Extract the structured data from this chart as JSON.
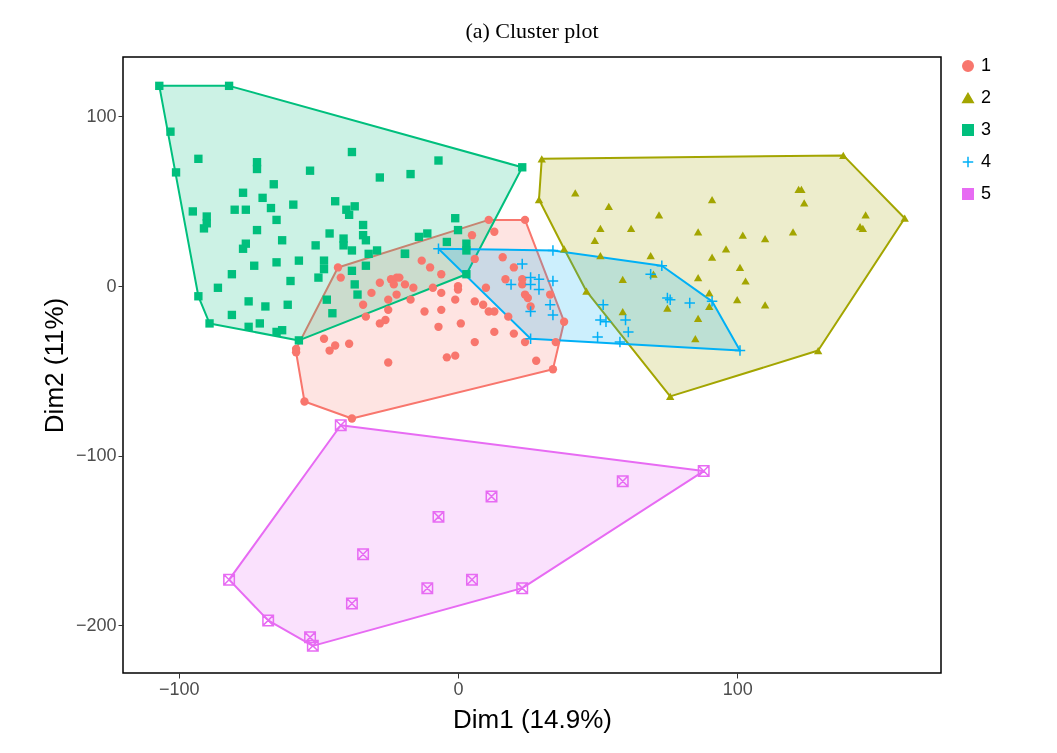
{
  "chart_data": {
    "type": "scatter",
    "title": "(a) Cluster plot",
    "xlabel": "Dim1 (14.9%)",
    "ylabel": "Dim2 (11%)",
    "xlim": [
      -120,
      173
    ],
    "ylim": [
      -228,
      135
    ],
    "xticks": [
      -100,
      0,
      100
    ],
    "yticks": [
      -200,
      -100,
      0,
      100
    ],
    "grid": false,
    "legend": "right",
    "series": [
      {
        "name": "1",
        "color": "#f8766d",
        "marker": "circle",
        "x": [
          -43,
          -42,
          -28,
          -24,
          -22,
          -23,
          -31,
          -25,
          -22,
          -34,
          -33,
          -25,
          -28,
          -26,
          -48,
          -44,
          -46,
          -39,
          -58,
          -58,
          -55,
          -38,
          -25,
          11,
          24,
          13,
          5,
          16,
          20,
          17,
          23,
          23,
          24,
          25,
          26,
          10,
          33,
          38,
          18,
          13,
          20,
          24,
          6,
          1,
          -7,
          -12,
          -6,
          -17,
          -9,
          0,
          0,
          -1,
          -6,
          6,
          9,
          11,
          13,
          6,
          -13,
          -10,
          -6,
          -19,
          -16,
          -21,
          35,
          -4,
          -1,
          28,
          34
        ],
        "values": [
          11,
          5,
          2,
          4,
          5,
          1,
          -4,
          -8,
          -5,
          -11,
          -18,
          -14,
          -22,
          -20,
          -31,
          -35,
          -38,
          -34,
          -37,
          -39,
          -68,
          -78,
          -45,
          39,
          39,
          32,
          30,
          17,
          11,
          4,
          4,
          1,
          -5,
          -7,
          -12,
          -1,
          -5,
          -21,
          -18,
          -27,
          -28,
          -33,
          -33,
          -22,
          -24,
          -15,
          -14,
          -8,
          -1,
          0,
          -2,
          -8,
          -4,
          -9,
          -11,
          -15,
          -15,
          16,
          15,
          11,
          7,
          1,
          -1,
          5,
          -33,
          -42,
          -41,
          -44,
          -49
        ]
      },
      {
        "name": "2",
        "color": "#a3a500",
        "marker": "triangle",
        "x": [
          30,
          29,
          42,
          54,
          51,
          49,
          62,
          72,
          38,
          51,
          69,
          70,
          59,
          46,
          59,
          75,
          138,
          160,
          129,
          91,
          122,
          123,
          124,
          146,
          144,
          145,
          86,
          102,
          110,
          120,
          96,
          91,
          101,
          103,
          86,
          90,
          90,
          100,
          110,
          86,
          85,
          76
        ],
        "values": [
          75,
          51,
          55,
          47,
          34,
          27,
          34,
          42,
          22,
          18,
          18,
          7,
          4,
          -3,
          -15,
          -13,
          77,
          40,
          -38,
          51,
          57,
          57,
          49,
          42,
          35,
          34,
          32,
          30,
          28,
          32,
          22,
          17,
          11,
          3,
          5,
          -4,
          -12,
          -8,
          -11,
          -19,
          -31,
          -65
        ]
      },
      {
        "name": "3",
        "color": "#00bf7d",
        "marker": "square",
        "x": [
          -107,
          -82,
          -103,
          -93,
          -101,
          -72,
          -72,
          -53,
          -38,
          -28,
          -66,
          -77,
          -70,
          -80,
          -76,
          -67,
          -59,
          -44,
          -40,
          -37,
          -39,
          -95,
          -90,
          -90,
          -91,
          -65,
          -72,
          -63,
          -76,
          -77,
          -46,
          -41,
          -41,
          -34,
          -34,
          -33,
          -51,
          -38,
          -32,
          -29,
          -73,
          -65,
          -57,
          -48,
          -48,
          -50,
          -81,
          -60,
          -86,
          -93,
          -75,
          -69,
          -61,
          -81,
          -71,
          -75,
          -89,
          -65,
          -63,
          -57,
          -47,
          -45,
          -38,
          -33,
          -37,
          -36,
          -19,
          -7,
          -17,
          23,
          -1,
          0,
          -14,
          -11,
          -4,
          3,
          3,
          -19,
          3
        ],
        "values": [
          118,
          118,
          91,
          75,
          67,
          73,
          69,
          68,
          79,
          64,
          60,
          55,
          52,
          45,
          45,
          46,
          48,
          50,
          45,
          47,
          42,
          44,
          41,
          37,
          34,
          39,
          33,
          27,
          25,
          22,
          31,
          28,
          24,
          36,
          30,
          27,
          24,
          21,
          19,
          21,
          12,
          14,
          15,
          15,
          10,
          5,
          7,
          3,
          -1,
          -6,
          -9,
          -12,
          -11,
          -17,
          -22,
          -24,
          -22,
          -27,
          -26,
          -32,
          -8,
          -16,
          9,
          12,
          1,
          -5,
          19,
          74,
          66,
          70,
          40,
          33,
          29,
          31,
          26,
          25,
          21,
          19,
          7
        ]
      },
      {
        "name": "4",
        "color": "#00b0f6",
        "marker": "cross",
        "x": [
          -7,
          34,
          73,
          23,
          26,
          29,
          34,
          19,
          26,
          29,
          33,
          34,
          26,
          26,
          52,
          51,
          53,
          60,
          61,
          50,
          58,
          69,
          75,
          83,
          91,
          101,
          76
        ],
        "values": [
          22,
          21,
          12,
          13,
          5,
          4,
          3,
          1,
          1,
          -2,
          -11,
          -17,
          -15,
          -31,
          -11,
          -20,
          -21,
          -20,
          -27,
          -30,
          -33,
          7,
          -7,
          -10,
          -9,
          -38,
          -8
        ]
      },
      {
        "name": "5",
        "color": "#e76bf3",
        "marker": "cross",
        "x": [
          -42,
          59,
          88,
          23,
          -52,
          -53,
          -68,
          -82,
          12,
          -7,
          -34,
          -38,
          -11,
          5
        ],
        "values": [
          -82,
          -115,
          -109,
          -178,
          -212,
          -207,
          -197,
          -173,
          -124,
          -136,
          -158,
          -187,
          -178,
          -173
        ]
      }
    ]
  }
}
